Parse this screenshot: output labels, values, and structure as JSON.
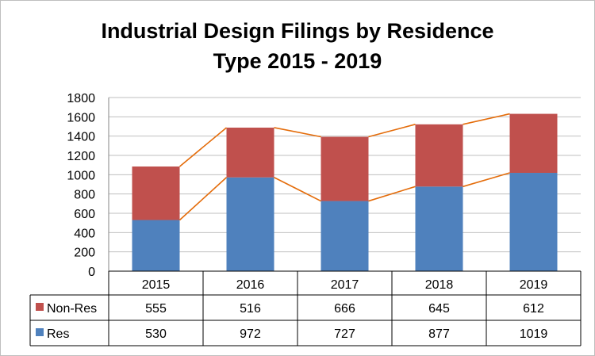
{
  "chart_data": {
    "type": "bar",
    "stacked": true,
    "title_line1": "Industrial Design Filings by Residence",
    "title_line2": "Type 2015 - 2019",
    "categories": [
      "2015",
      "2016",
      "2017",
      "2018",
      "2019"
    ],
    "series": [
      {
        "name": "Res",
        "values": [
          530,
          972,
          727,
          877,
          1019
        ],
        "color": "#4f81bd"
      },
      {
        "name": "Non-Res",
        "values": [
          555,
          516,
          666,
          645,
          612
        ],
        "color": "#c0504d"
      }
    ],
    "series_lines_color": "#e46c0a",
    "ylim": [
      0,
      1800
    ],
    "yticks": [
      "0",
      "200",
      "400",
      "600",
      "800",
      "1000",
      "1200",
      "1400",
      "1600",
      "1800"
    ],
    "grid": true,
    "data_table": true
  }
}
